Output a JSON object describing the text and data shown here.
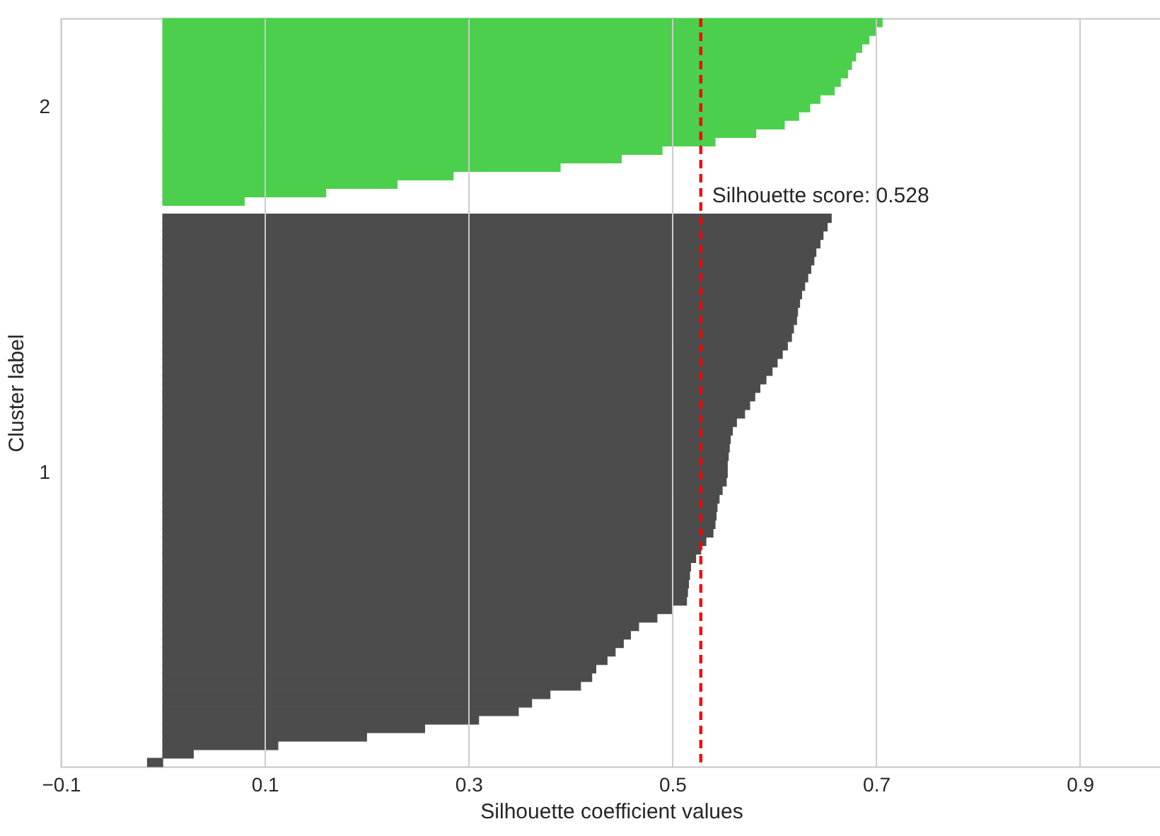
{
  "chart_data": {
    "type": "bar",
    "orientation": "horizontal",
    "xlabel": "Silhouette coefficient values",
    "ylabel": "Cluster label",
    "categories": [
      null,
      null,
      null,
      null,
      null,
      null,
      null,
      null,
      null,
      null,
      "2",
      null,
      null,
      null,
      null,
      null,
      null,
      null,
      null,
      null,
      null,
      null,
      null,
      null,
      null,
      null,
      null,
      null,
      null,
      null,
      null,
      null,
      null,
      null,
      null,
      null,
      null,
      null,
      null,
      null,
      null,
      null,
      null,
      null,
      null,
      null,
      null,
      null,
      null,
      null,
      null,
      null,
      null,
      "1",
      null,
      null,
      null,
      null,
      null,
      null,
      null,
      null,
      null,
      null,
      null,
      null,
      null,
      null,
      null,
      null,
      null,
      null,
      null,
      null,
      null,
      null,
      null,
      null,
      null,
      null,
      null,
      null,
      null,
      null,
      null,
      null,
      null,
      null
    ],
    "series": [
      {
        "color": "#4ccf4c",
        "values": [
          0.706,
          0.7,
          0.693,
          0.686,
          0.68,
          0.676,
          0.672,
          0.665,
          0.659,
          0.645,
          0.635,
          0.624,
          0.61,
          0.582,
          0.542,
          0.49,
          0.45,
          0.39,
          0.285,
          0.23,
          0.16,
          0.08,
          null,
          null,
          null,
          null,
          null,
          null,
          null,
          null,
          null,
          null,
          null,
          null,
          null,
          null,
          null,
          null,
          null,
          null,
          null,
          null,
          null,
          null,
          null,
          null,
          null,
          null,
          null,
          null,
          null,
          null,
          null,
          null,
          null,
          null,
          null,
          null,
          null,
          null,
          null,
          null,
          null,
          null,
          null,
          null,
          null,
          null,
          null,
          null,
          null,
          null,
          null,
          null,
          null,
          null,
          null,
          null,
          null,
          null,
          null,
          null,
          null,
          null,
          null,
          null,
          null,
          null
        ]
      },
      {
        "color": "#4c4c4c",
        "values": [
          null,
          null,
          null,
          null,
          null,
          null,
          null,
          null,
          null,
          null,
          null,
          null,
          null,
          null,
          null,
          null,
          null,
          null,
          null,
          null,
          null,
          null,
          null,
          0.656,
          0.652,
          0.648,
          0.645,
          0.641,
          0.639,
          0.636,
          0.633,
          0.63,
          0.627,
          0.625,
          0.623,
          0.622,
          0.619,
          0.617,
          0.613,
          0.608,
          0.603,
          0.598,
          0.592,
          0.586,
          0.581,
          0.576,
          0.571,
          0.563,
          0.559,
          0.557,
          0.556,
          0.555,
          0.554,
          0.554,
          0.553,
          0.549,
          0.546,
          0.544,
          0.543,
          0.542,
          0.54,
          0.533,
          0.528,
          0.523,
          0.518,
          0.517,
          0.516,
          0.515,
          0.514,
          0.5,
          0.485,
          0.467,
          0.459,
          0.452,
          0.444,
          0.436,
          0.425,
          0.421,
          0.41,
          0.38,
          0.362,
          0.349,
          0.31,
          0.257,
          0.2,
          0.113,
          0.03,
          -0.015
        ]
      }
    ],
    "xlim": [
      -0.1,
      0.98
    ],
    "xticks": [
      {
        "value": -0.1,
        "label": "−0.1"
      },
      0.1,
      0.3,
      0.5,
      0.7,
      0.9
    ],
    "grid": "x",
    "ref_lines": [
      {
        "axis": "x",
        "value": 0.528,
        "label": "Silhouette score: 0.528",
        "color": "#ff0000",
        "line_style": "dashed"
      }
    ]
  }
}
